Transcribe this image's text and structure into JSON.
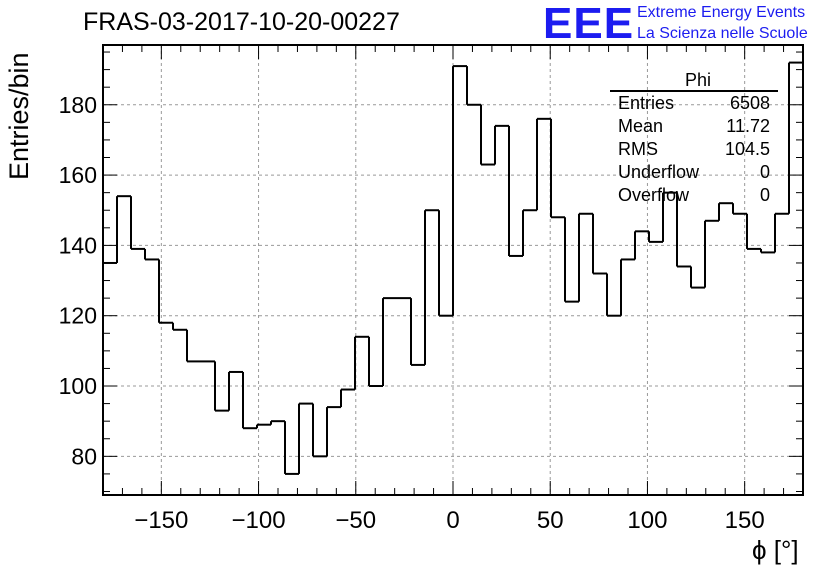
{
  "header": {
    "run_title": "FRAS-03-2017-10-20-00227",
    "logo_text": "EEE",
    "logo_line1": "Extreme Energy Events",
    "logo_line2": "La Scienza nelle Scuole"
  },
  "stats_box": {
    "title": "Phi",
    "rows": [
      {
        "label": "Entries",
        "value": "6508"
      },
      {
        "label": "Mean",
        "value": "11.72"
      },
      {
        "label": "RMS",
        "value": "104.5"
      },
      {
        "label": "Underflow",
        "value": "0"
      },
      {
        "label": "Overflow",
        "value": "0"
      }
    ]
  },
  "chart_data": {
    "type": "histogram",
    "xlabel": "ϕ [°]",
    "ylabel": "Entries/bin",
    "xlim": [
      -180,
      180
    ],
    "ylim": [
      69,
      197
    ],
    "bin_width": 7.2,
    "bin_start": -180,
    "values": [
      135,
      154,
      139,
      136,
      118,
      116,
      107,
      107,
      93,
      104,
      88,
      89,
      90,
      75,
      95,
      80,
      94,
      99,
      114,
      100,
      125,
      125,
      106,
      150,
      120,
      191,
      180,
      163,
      174,
      137,
      150,
      176,
      148,
      124,
      149,
      132,
      120,
      136,
      144,
      141,
      155,
      134,
      128,
      147,
      152,
      149,
      139,
      138,
      149,
      192
    ],
    "x_ticks": [
      -150,
      -100,
      -50,
      0,
      50,
      100,
      150
    ],
    "x_tick_labels": [
      "−150",
      "−100",
      "−50",
      "0",
      "50",
      "100",
      "150"
    ],
    "y_ticks": [
      80,
      100,
      120,
      140,
      160,
      180
    ],
    "y_tick_labels": [
      "80",
      "100",
      "120",
      "140",
      "160",
      "180"
    ],
    "grid": true,
    "line_color": "#000000",
    "grid_color": "#999999"
  }
}
